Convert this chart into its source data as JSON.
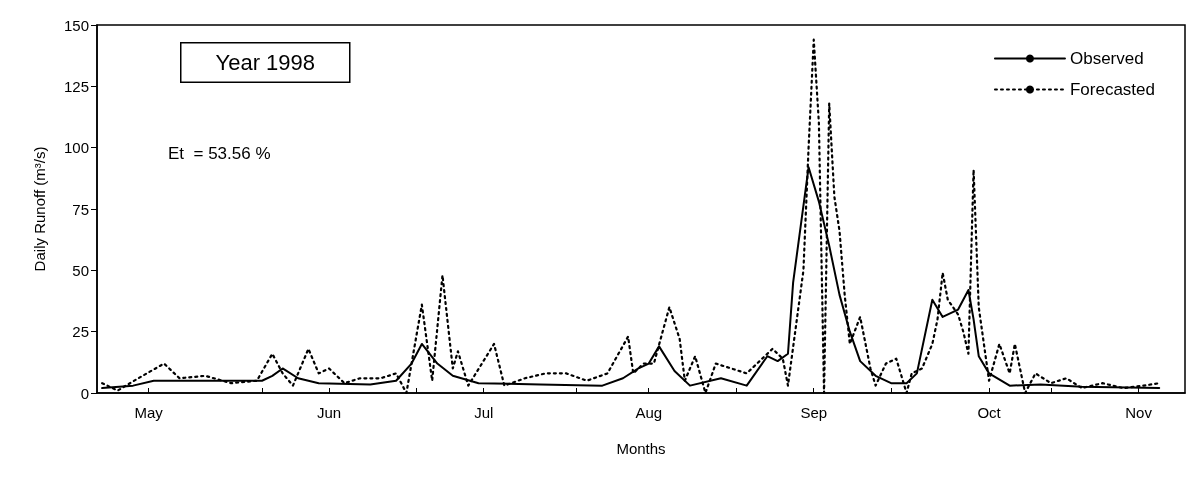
{
  "chart_data": {
    "type": "line",
    "xlabel": "Months",
    "ylabel": "Daily Runoff (m³/s)",
    "annotations": [
      "Year 1998",
      "Et  = 53.56 %"
    ],
    "xlim": [
      "1998-04-30",
      "1998-11-27"
    ],
    "xticks": [
      {
        "value": "1998-05-10",
        "label": "May"
      },
      {
        "value": "1998-06-01",
        "label": null
      },
      {
        "value": "1998-06-14",
        "label": "Jun"
      },
      {
        "value": "1998-07-01",
        "label": null
      },
      {
        "value": "1998-07-14",
        "label": "Jul"
      },
      {
        "value": "1998-08-01",
        "label": null
      },
      {
        "value": "1998-08-15",
        "label": "Aug"
      },
      {
        "value": "1998-09-01",
        "label": null
      },
      {
        "value": "1998-09-16",
        "label": "Sep"
      },
      {
        "value": "1998-10-01",
        "label": null
      },
      {
        "value": "1998-10-20",
        "label": "Oct"
      },
      {
        "value": "1998-11-01",
        "label": null
      },
      {
        "value": "1998-11-18",
        "label": "Nov"
      }
    ],
    "ylim": [
      0,
      150
    ],
    "yticks": [
      0,
      25,
      50,
      75,
      100,
      125,
      150
    ],
    "grid": false,
    "legend": "top right",
    "marker": "none",
    "series": [
      {
        "name": "Observed",
        "color": "#000000",
        "line_style": "solid",
        "x": [
          "1998-05-01",
          "1998-05-07",
          "1998-05-11",
          "1998-05-20",
          "1998-06-01",
          "1998-06-03",
          "1998-06-05",
          "1998-06-08",
          "1998-06-12",
          "1998-06-22",
          "1998-06-27",
          "1998-06-30",
          "1998-07-02",
          "1998-07-05",
          "1998-07-08",
          "1998-07-13",
          "1998-07-25",
          "1998-08-06",
          "1998-08-10",
          "1998-08-13",
          "1998-08-15",
          "1998-08-17",
          "1998-08-20",
          "1998-08-23",
          "1998-08-29",
          "1998-09-03",
          "1998-09-07",
          "1998-09-09",
          "1998-09-11",
          "1998-09-12",
          "1998-09-15",
          "1998-09-17",
          "1998-09-19",
          "1998-09-21",
          "1998-09-23",
          "1998-09-25",
          "1998-09-28",
          "1998-10-01",
          "1998-10-04",
          "1998-10-06",
          "1998-10-09",
          "1998-10-11",
          "1998-10-14",
          "1998-10-16",
          "1998-10-17",
          "1998-10-18",
          "1998-10-20",
          "1998-10-24",
          "1998-10-30",
          "1998-11-07",
          "1998-11-22"
        ],
        "values": [
          2,
          3,
          5,
          5,
          5,
          7,
          10,
          6,
          4,
          3.5,
          5,
          12,
          20,
          12,
          7,
          4,
          3.5,
          3,
          6,
          10,
          12,
          19,
          9,
          3,
          6,
          3,
          15,
          13,
          16,
          45,
          92,
          78,
          60,
          40,
          25,
          13,
          7,
          4,
          4,
          8,
          38,
          31,
          34,
          42,
          30,
          15,
          8,
          3,
          3.5,
          2.5,
          2
        ]
      },
      {
        "name": "Forecasted",
        "color": "#000000",
        "line_style": "dotted",
        "x": [
          "1998-05-01",
          "1998-05-04",
          "1998-05-08",
          "1998-05-13",
          "1998-05-16",
          "1998-05-21",
          "1998-05-26",
          "1998-05-31",
          "1998-06-03",
          "1998-06-05",
          "1998-06-07",
          "1998-06-10",
          "1998-06-12",
          "1998-06-14",
          "1998-06-17",
          "1998-06-20",
          "1998-06-24",
          "1998-06-27",
          "1998-06-29",
          "1998-07-02",
          "1998-07-04",
          "1998-07-06",
          "1998-07-08",
          "1998-07-09",
          "1998-07-11",
          "1998-07-16",
          "1998-07-18",
          "1998-07-22",
          "1998-07-26",
          "1998-07-30",
          "1998-08-03",
          "1998-08-07",
          "1998-08-11",
          "1998-08-12",
          "1998-08-14",
          "1998-08-16",
          "1998-08-19",
          "1998-08-21",
          "1998-08-22",
          "1998-08-24",
          "1998-08-26",
          "1998-08-28",
          "1998-08-31",
          "1998-09-03",
          "1998-09-06",
          "1998-09-08",
          "1998-09-10",
          "1998-09-11",
          "1998-09-14",
          "1998-09-15",
          "1998-09-16",
          "1998-09-17",
          "1998-09-18",
          "1998-09-19",
          "1998-09-20",
          "1998-09-21",
          "1998-09-22",
          "1998-09-23",
          "1998-09-25",
          "1998-09-27",
          "1998-09-28",
          "1998-09-30",
          "1998-10-02",
          "1998-10-04",
          "1998-10-05",
          "1998-10-07",
          "1998-10-09",
          "1998-10-10",
          "1998-10-11",
          "1998-10-12",
          "1998-10-14",
          "1998-10-15",
          "1998-10-16",
          "1998-10-17",
          "1998-10-18",
          "1998-10-19",
          "1998-10-20",
          "1998-10-22",
          "1998-10-24",
          "1998-10-25",
          "1998-10-27",
          "1998-10-29",
          "1998-11-01",
          "1998-11-04",
          "1998-11-07",
          "1998-11-11",
          "1998-11-15",
          "1998-11-19",
          "1998-11-22"
        ],
        "values": [
          4,
          1,
          6,
          12,
          6,
          7,
          4,
          5,
          16,
          8,
          3,
          18,
          8,
          10,
          4,
          6,
          6,
          8,
          0,
          36,
          5,
          48,
          10,
          17,
          3,
          20,
          3,
          6,
          8,
          8,
          5,
          8,
          23,
          8,
          12,
          12,
          35,
          22,
          5,
          15,
          0,
          12,
          10,
          8,
          14,
          18,
          14,
          3,
          50,
          100,
          144,
          110,
          0,
          118,
          80,
          66,
          40,
          20,
          31,
          10,
          3,
          12,
          14,
          0,
          8,
          10,
          20,
          30,
          49,
          38,
          32,
          25,
          16,
          91,
          35,
          20,
          5,
          20,
          8,
          20,
          0,
          8,
          4,
          6,
          2,
          4,
          2,
          3,
          4
        ]
      }
    ]
  }
}
